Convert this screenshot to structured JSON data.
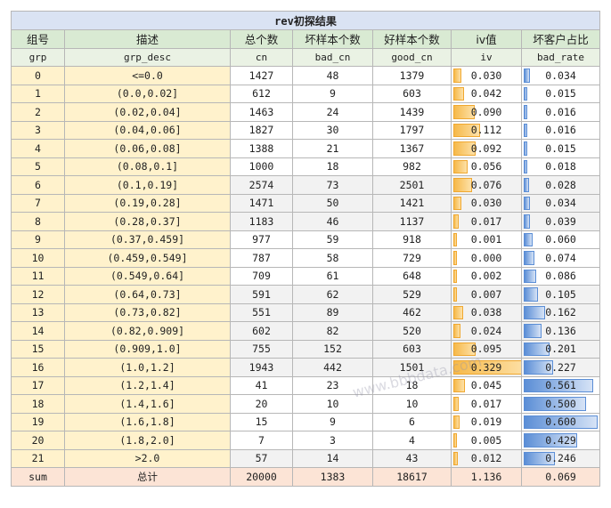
{
  "title": "rev初探结果",
  "headers_cn": [
    "组号",
    "描述",
    "总个数",
    "坏样本个数",
    "好样本个数",
    "iv值",
    "坏客户占比"
  ],
  "headers_en": [
    "grp",
    "grp_desc",
    "cn",
    "bad_cn",
    "good_cn",
    "iv",
    "bad_rate"
  ],
  "rows": [
    {
      "grp": "0",
      "desc": "<=0.0",
      "cn": "1427",
      "bad": "48",
      "good": "1379",
      "iv": "0.030",
      "rate": "0.034"
    },
    {
      "grp": "1",
      "desc": "(0.0,0.02]",
      "cn": "612",
      "bad": "9",
      "good": "603",
      "iv": "0.042",
      "rate": "0.015"
    },
    {
      "grp": "2",
      "desc": "(0.02,0.04]",
      "cn": "1463",
      "bad": "24",
      "good": "1439",
      "iv": "0.090",
      "rate": "0.016"
    },
    {
      "grp": "3",
      "desc": "(0.04,0.06]",
      "cn": "1827",
      "bad": "30",
      "good": "1797",
      "iv": "0.112",
      "rate": "0.016"
    },
    {
      "grp": "4",
      "desc": "(0.06,0.08]",
      "cn": "1388",
      "bad": "21",
      "good": "1367",
      "iv": "0.092",
      "rate": "0.015"
    },
    {
      "grp": "5",
      "desc": "(0.08,0.1]",
      "cn": "1000",
      "bad": "18",
      "good": "982",
      "iv": "0.056",
      "rate": "0.018"
    },
    {
      "grp": "6",
      "desc": "(0.1,0.19]",
      "cn": "2574",
      "bad": "73",
      "good": "2501",
      "iv": "0.076",
      "rate": "0.028"
    },
    {
      "grp": "7",
      "desc": "(0.19,0.28]",
      "cn": "1471",
      "bad": "50",
      "good": "1421",
      "iv": "0.030",
      "rate": "0.034"
    },
    {
      "grp": "8",
      "desc": "(0.28,0.37]",
      "cn": "1183",
      "bad": "46",
      "good": "1137",
      "iv": "0.017",
      "rate": "0.039"
    },
    {
      "grp": "9",
      "desc": "(0.37,0.459]",
      "cn": "977",
      "bad": "59",
      "good": "918",
      "iv": "0.001",
      "rate": "0.060"
    },
    {
      "grp": "10",
      "desc": "(0.459,0.549]",
      "cn": "787",
      "bad": "58",
      "good": "729",
      "iv": "0.000",
      "rate": "0.074"
    },
    {
      "grp": "11",
      "desc": "(0.549,0.64]",
      "cn": "709",
      "bad": "61",
      "good": "648",
      "iv": "0.002",
      "rate": "0.086"
    },
    {
      "grp": "12",
      "desc": "(0.64,0.73]",
      "cn": "591",
      "bad": "62",
      "good": "529",
      "iv": "0.007",
      "rate": "0.105"
    },
    {
      "grp": "13",
      "desc": "(0.73,0.82]",
      "cn": "551",
      "bad": "89",
      "good": "462",
      "iv": "0.038",
      "rate": "0.162"
    },
    {
      "grp": "14",
      "desc": "(0.82,0.909]",
      "cn": "602",
      "bad": "82",
      "good": "520",
      "iv": "0.024",
      "rate": "0.136"
    },
    {
      "grp": "15",
      "desc": "(0.909,1.0]",
      "cn": "755",
      "bad": "152",
      "good": "603",
      "iv": "0.095",
      "rate": "0.201"
    },
    {
      "grp": "16",
      "desc": "(1.0,1.2]",
      "cn": "1943",
      "bad": "442",
      "good": "1501",
      "iv": "0.329",
      "rate": "0.227"
    },
    {
      "grp": "17",
      "desc": "(1.2,1.4]",
      "cn": "41",
      "bad": "23",
      "good": "18",
      "iv": "0.045",
      "rate": "0.561"
    },
    {
      "grp": "18",
      "desc": "(1.4,1.6]",
      "cn": "20",
      "bad": "10",
      "good": "10",
      "iv": "0.017",
      "rate": "0.500"
    },
    {
      "grp": "19",
      "desc": "(1.6,1.8]",
      "cn": "15",
      "bad": "9",
      "good": "6",
      "iv": "0.019",
      "rate": "0.600"
    },
    {
      "grp": "20",
      "desc": "(1.8,2.0]",
      "cn": "7",
      "bad": "3",
      "good": "4",
      "iv": "0.005",
      "rate": "0.429"
    },
    {
      "grp": "21",
      "desc": ">2.0",
      "cn": "57",
      "bad": "14",
      "good": "43",
      "iv": "0.012",
      "rate": "0.246"
    }
  ],
  "sum": {
    "grp": "sum",
    "desc": "总计",
    "cn": "20000",
    "bad": "1383",
    "good": "18617",
    "iv": "1.136",
    "rate": "0.069"
  },
  "watermark": "www.bbbdata.com",
  "colors": {
    "iv_bar": "#f6b94a",
    "rate_bar": "#5b8ed6",
    "group_cell": "#fff2cc",
    "header": "#d9ead3",
    "title": "#dae3f3",
    "sum_row": "#fce4d6"
  }
}
